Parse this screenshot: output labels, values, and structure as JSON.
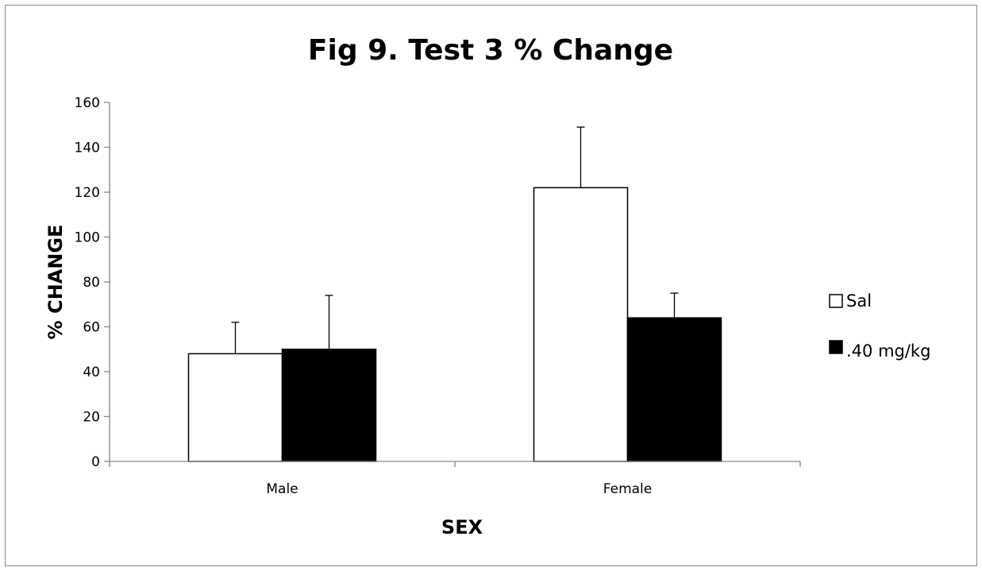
{
  "chart_data": {
    "type": "bar",
    "title": "Fig 9. Test 3 % Change",
    "xlabel": "SEX",
    "ylabel": "% CHANGE",
    "categories": [
      "Male",
      "Female"
    ],
    "ylim": [
      0,
      160
    ],
    "yticks": [
      0,
      20,
      40,
      60,
      80,
      100,
      120,
      140,
      160
    ],
    "grid": false,
    "legend_position": "right",
    "series": [
      {
        "name": "Sal",
        "color": "#ffffff",
        "values": [
          48,
          122
        ],
        "error": [
          14,
          27
        ]
      },
      {
        "name": ".40 mg/kg",
        "color": "#000000",
        "values": [
          50,
          64
        ],
        "error": [
          24,
          11
        ]
      }
    ]
  }
}
